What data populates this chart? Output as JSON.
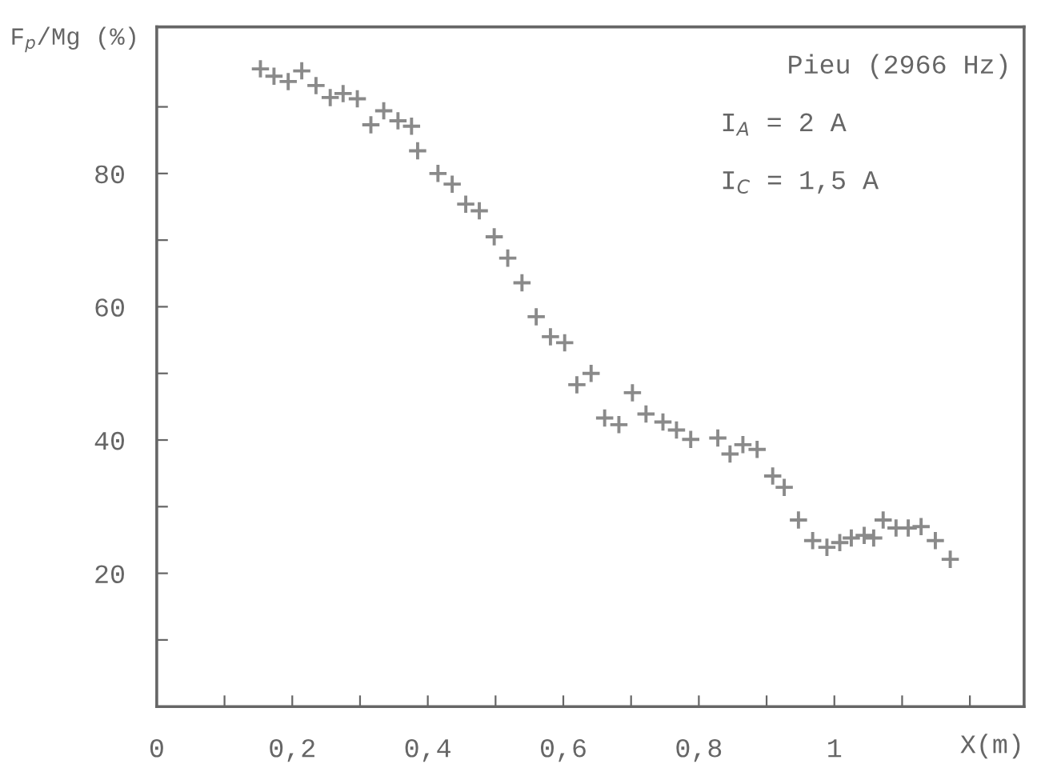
{
  "chart_data": {
    "type": "scatter",
    "xlabel": "X(m)",
    "ylabel": "F$_{p}$/Mg (%)",
    "annotations": [
      "Pieu (2966 Hz)",
      "I$_{A}$ = 2 A",
      "I$_{C}$ = 1,5 A"
    ],
    "xlim": [
      0,
      1.28
    ],
    "ylim": [
      0,
      102
    ],
    "xticks": [
      {
        "value": 0,
        "label": "0"
      },
      {
        "value": 0.1,
        "label": null
      },
      {
        "value": 0.2,
        "label": "0,2"
      },
      {
        "value": 0.3,
        "label": null
      },
      {
        "value": 0.4,
        "label": "0,4"
      },
      {
        "value": 0.5,
        "label": null
      },
      {
        "value": 0.6,
        "label": "0,6"
      },
      {
        "value": 0.7,
        "label": null
      },
      {
        "value": 0.8,
        "label": "0,8"
      },
      {
        "value": 0.9,
        "label": null
      },
      {
        "value": 1,
        "label": "1"
      },
      {
        "value": 1.1,
        "label": null
      },
      {
        "value": 1.2,
        "label": null
      }
    ],
    "yticks": [
      {
        "value": 10,
        "label": null
      },
      20,
      {
        "value": 30,
        "label": null
      },
      40,
      {
        "value": 50,
        "label": null
      },
      60,
      {
        "value": 70,
        "label": null
      },
      80,
      {
        "value": 90,
        "label": null
      }
    ],
    "marker": "cross",
    "grid": false,
    "series": [
      {
        "color": "#8a8a8a",
        "x": [
          0.153,
          0.173,
          0.194,
          0.214,
          0.235,
          0.256,
          0.275,
          0.296,
          0.316,
          0.335,
          0.356,
          0.376,
          0.385,
          0.415,
          0.436,
          0.456,
          0.476,
          0.498,
          0.518,
          0.539,
          0.56,
          0.581,
          0.602,
          0.62,
          0.641,
          0.661,
          0.682,
          0.702,
          0.722,
          0.747,
          0.767,
          0.788,
          0.828,
          0.846,
          0.865,
          0.886,
          0.909,
          0.926,
          0.947,
          0.968,
          0.989,
          1.008,
          1.025,
          1.044,
          1.058,
          1.072,
          1.091,
          1.109,
          1.128,
          1.149,
          1.171
        ],
        "values": [
          95.7,
          94.6,
          93.8,
          95.4,
          93.2,
          91.4,
          92.0,
          91.2,
          87.3,
          89.4,
          87.9,
          87.1,
          83.4,
          80.0,
          78.4,
          75.4,
          74.4,
          70.5,
          67.3,
          63.6,
          58.5,
          55.5,
          54.6,
          48.3,
          50.0,
          43.3,
          42.3,
          47.1,
          43.9,
          42.7,
          41.5,
          40.1,
          40.3,
          37.9,
          39.3,
          38.6,
          34.6,
          32.9,
          28.0,
          24.9,
          23.9,
          24.6,
          25.3,
          25.7,
          25.3,
          28.0,
          26.8,
          26.8,
          27.0,
          24.9,
          22.1
        ]
      }
    ]
  }
}
